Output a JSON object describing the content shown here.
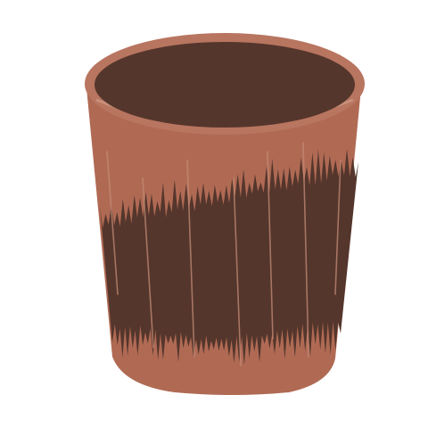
{
  "illustration": {
    "subject": "cup-icon",
    "colors": {
      "background": "#ffffff",
      "body": "#b06a54",
      "body_edge": "#a05d49",
      "rim": "#b87560",
      "rim_highlight": "#c8907a",
      "interior": "#54362c",
      "band": "#54362c",
      "streak": "#c48a76"
    }
  }
}
